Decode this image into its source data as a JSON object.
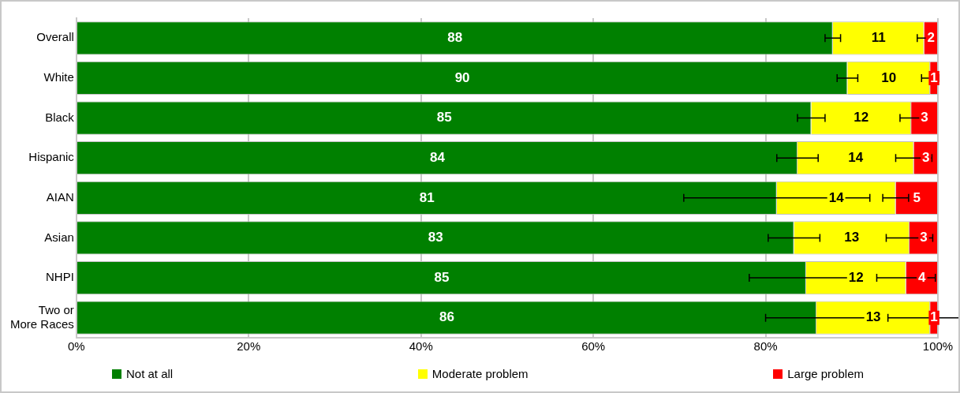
{
  "chart_data": {
    "type": "bar",
    "orientation": "horizontal",
    "stacked": true,
    "categories": [
      "Overall",
      "White",
      "Black",
      "Hispanic",
      "AIAN",
      "Asian",
      "NHPI",
      "Two or More Races"
    ],
    "series": [
      {
        "name": "Not at all",
        "color": "#008000",
        "values": [
          87.8,
          89.5,
          85.3,
          83.7,
          81.3,
          83.3,
          84.7,
          85.9
        ],
        "errors": [
          0.9,
          1.2,
          1.6,
          2.4,
          10.8,
          3.0,
          6.6,
          5.9
        ],
        "value_labels": [
          "88",
          "90",
          "85",
          "84",
          "81",
          "83",
          "85",
          "86"
        ]
      },
      {
        "name": "Moderate problem",
        "color": "#ffff00",
        "values": [
          10.6,
          9.6,
          11.6,
          13.5,
          13.8,
          13.4,
          11.6,
          13.2
        ],
        "errors": [
          0.8,
          1.0,
          1.3,
          2.1,
          1.5,
          2.7,
          3.4,
          4.9
        ],
        "value_labels": [
          "11",
          "10",
          "12",
          "14",
          "14",
          "13",
          "12",
          "13"
        ]
      },
      {
        "name": "Large problem",
        "color": "#ff0000",
        "values": [
          1.6,
          0.9,
          3.1,
          2.8,
          4.9,
          3.3,
          3.7,
          0.9
        ],
        "value_labels": [
          "2",
          "1",
          "3",
          "3",
          "5",
          "3",
          "4",
          "1"
        ]
      }
    ],
    "xlim": [
      0,
      100
    ],
    "xticks": [
      {
        "value": 0,
        "label": "0%"
      },
      {
        "value": 20,
        "label": "20%"
      },
      {
        "value": 40,
        "label": "40%"
      },
      {
        "value": 60,
        "label": "60%"
      },
      {
        "value": 80,
        "label": "80%"
      },
      {
        "value": 100,
        "label": "100%"
      }
    ],
    "grid": "x",
    "legend": "bottom"
  }
}
